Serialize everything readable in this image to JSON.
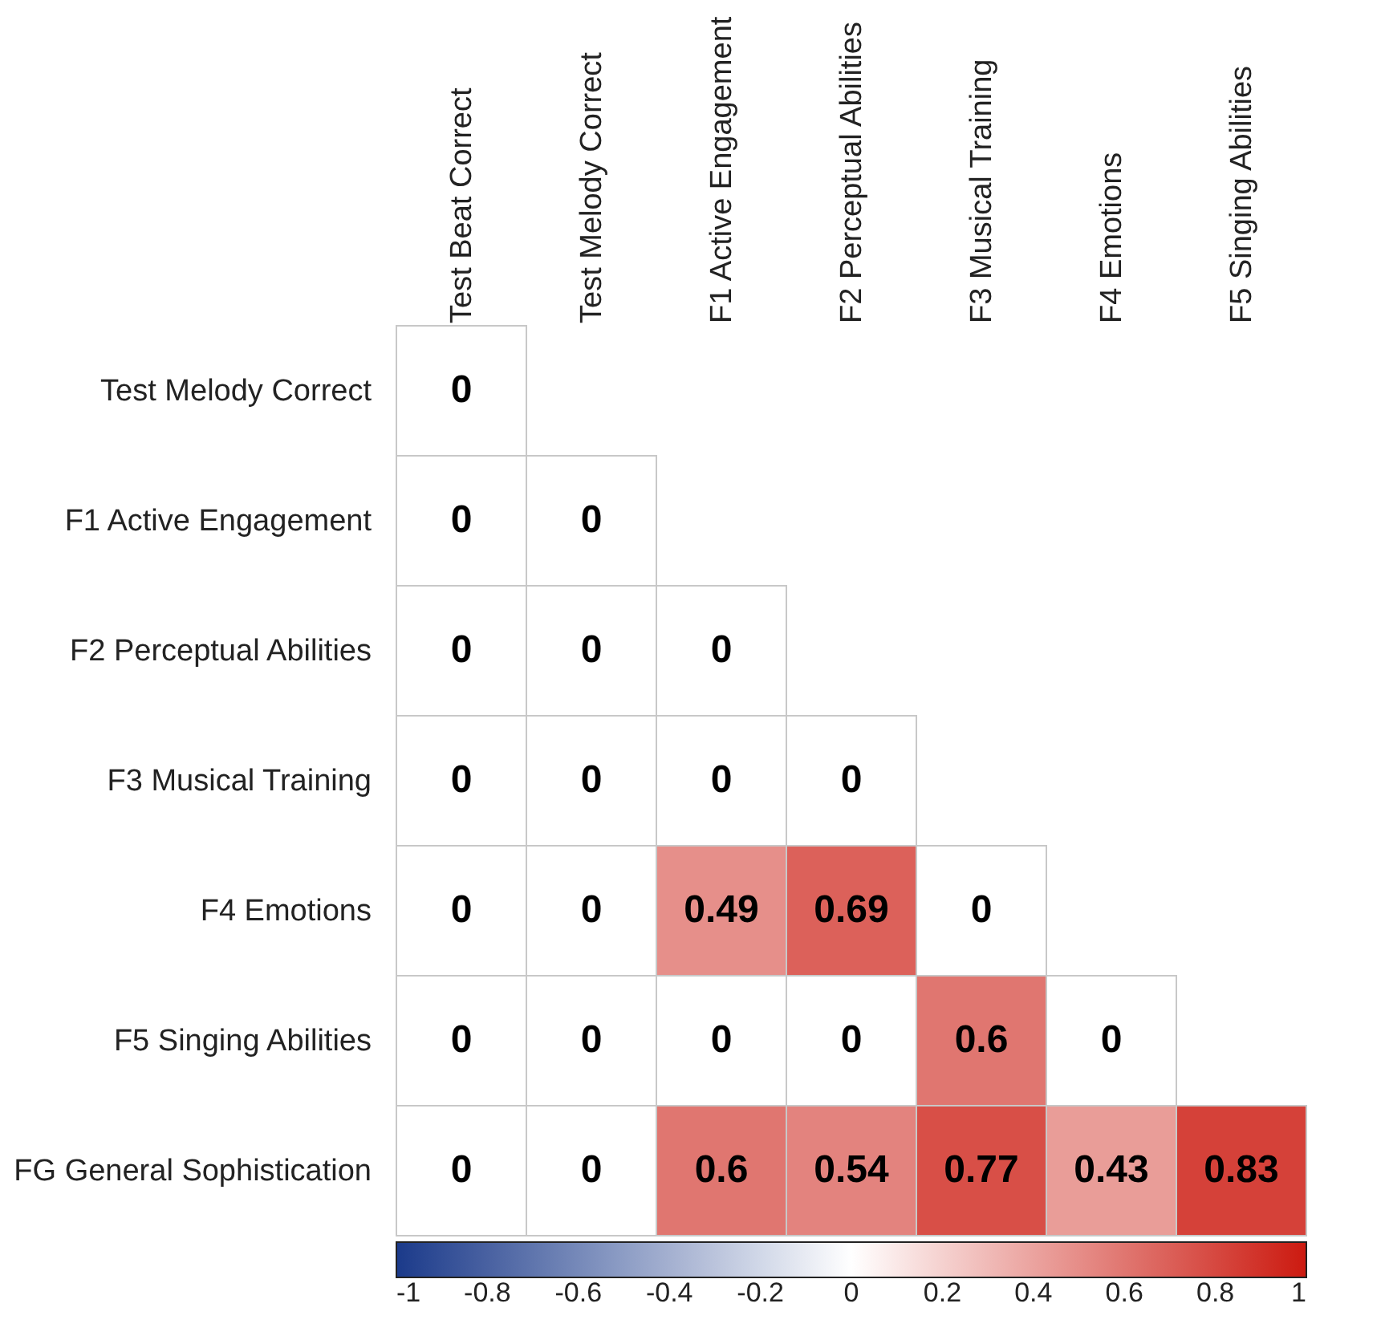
{
  "chart_data": {
    "type": "heatmap",
    "categories": [
      "Test Beat Correct",
      "Test Melody Correct",
      "F1 Active Engagement",
      "F2 Perceptual Abilities",
      "F3 Musical Training",
      "F4 Emotions",
      "F5 Singing Abilities"
    ],
    "y_categories": [
      "Test Melody Correct",
      "F1 Active Engagement",
      "F2 Perceptual Abilities",
      "F3 Musical Training",
      "F4 Emotions",
      "F5 Singing Abilities",
      "FG General Sophistication"
    ],
    "cells": [
      [
        0,
        null,
        null,
        null,
        null,
        null,
        null
      ],
      [
        0,
        0,
        null,
        null,
        null,
        null,
        null
      ],
      [
        0,
        0,
        0,
        null,
        null,
        null,
        null
      ],
      [
        0,
        0,
        0,
        0,
        null,
        null,
        null
      ],
      [
        0,
        0,
        0.49,
        0.69,
        0,
        null,
        null
      ],
      [
        0,
        0,
        0,
        0,
        0.6,
        0,
        null
      ],
      [
        0,
        0,
        0.6,
        0.54,
        0.77,
        0.43,
        0.83
      ]
    ],
    "data_labels": true,
    "clim": [
      -1,
      1
    ],
    "cticks": [
      -1,
      -0.8,
      -0.6,
      -0.4,
      -0.2,
      0,
      0.2,
      0.4,
      0.6,
      0.8,
      1
    ]
  }
}
